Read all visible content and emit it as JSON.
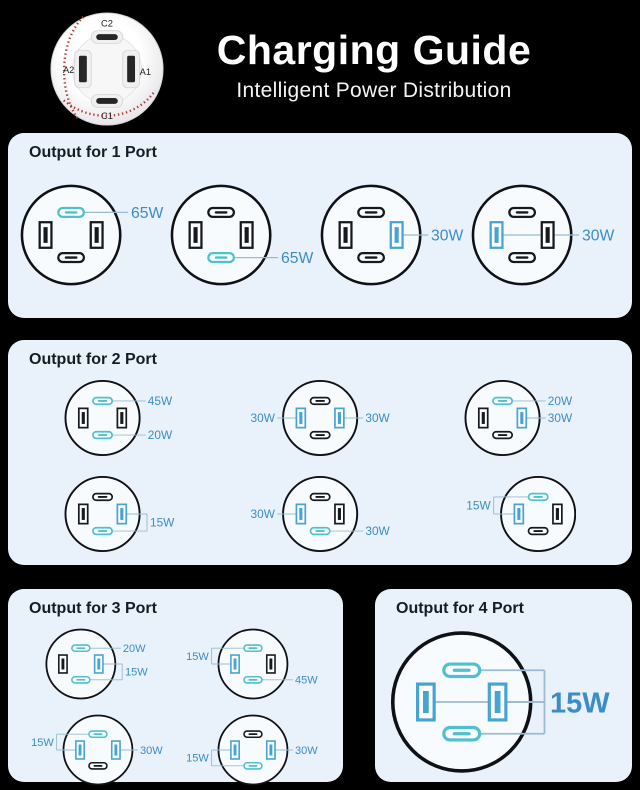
{
  "header": {
    "title": "Charging Guide",
    "subtitle": "Intelligent Power Distribution",
    "device": {
      "description": "baseball-shaped charger top view",
      "ports": [
        {
          "label": "C2",
          "type": "usb-c",
          "position": "top"
        },
        {
          "label": "A2",
          "type": "usb-a",
          "position": "left"
        },
        {
          "label": "A1",
          "type": "usb-a",
          "position": "right"
        },
        {
          "label": "C1",
          "type": "usb-c",
          "position": "bottom"
        }
      ]
    }
  },
  "colors": {
    "page_bg": "#000000",
    "panel_bg": "#e9f1fa",
    "socket_fill": "#f8fbfe",
    "outline": "#0f1116",
    "port_off": "#16191d",
    "port_c_active": "#4fc0cd",
    "port_a_active": "#46a3d2",
    "line": "#9cbbd1",
    "label": "#3b8dc7",
    "title_text": "#141d26",
    "stitch_red": "#b53a3a"
  },
  "panels": [
    {
      "title": "Output for 1 Port",
      "sockets": [
        {
          "on": [
            "tc"
          ],
          "ann": [
            {
              "ports": [
                "tc"
              ],
              "side": "right",
              "label": "65W"
            }
          ]
        },
        {
          "on": [
            "bc"
          ],
          "ann": [
            {
              "ports": [
                "bc"
              ],
              "side": "right",
              "label": "65W"
            }
          ]
        },
        {
          "on": [
            "ra"
          ],
          "ann": [
            {
              "ports": [
                "ra"
              ],
              "side": "right",
              "label": "30W"
            }
          ]
        },
        {
          "on": [
            "la"
          ],
          "ann": [
            {
              "ports": [
                "la"
              ],
              "side": "right",
              "label": "30W"
            }
          ]
        }
      ]
    },
    {
      "title": "Output for 2 Port",
      "sockets": [
        {
          "on": [
            "tc",
            "bc"
          ],
          "ann": [
            {
              "ports": [
                "tc"
              ],
              "side": "right",
              "label": "45W"
            },
            {
              "ports": [
                "bc"
              ],
              "side": "right",
              "label": "20W"
            }
          ]
        },
        {
          "on": [
            "la",
            "ra"
          ],
          "ann": [
            {
              "ports": [
                "la"
              ],
              "side": "left",
              "label": "30W"
            },
            {
              "ports": [
                "ra"
              ],
              "side": "right",
              "label": "30W"
            }
          ]
        },
        {
          "on": [
            "tc",
            "ra"
          ],
          "ann": [
            {
              "ports": [
                "tc"
              ],
              "side": "right",
              "label": "20W"
            },
            {
              "ports": [
                "ra"
              ],
              "side": "right",
              "label": "30W"
            }
          ]
        },
        {
          "on": [
            "ra",
            "bc"
          ],
          "ann": [
            {
              "ports": [
                "ra",
                "bc"
              ],
              "side": "right",
              "label": "15W"
            }
          ]
        },
        {
          "on": [
            "la",
            "bc"
          ],
          "ann": [
            {
              "ports": [
                "la"
              ],
              "side": "left",
              "label": "30W"
            },
            {
              "ports": [
                "bc"
              ],
              "side": "right",
              "label": "30W"
            }
          ]
        },
        {
          "on": [
            "tc",
            "la"
          ],
          "ann": [
            {
              "ports": [
                "tc",
                "la"
              ],
              "side": "left",
              "label": "15W"
            }
          ]
        }
      ]
    },
    {
      "title": "Output for 3 Port",
      "sockets": [
        {
          "on": [
            "tc",
            "ra",
            "bc"
          ],
          "ann": [
            {
              "ports": [
                "tc"
              ],
              "side": "right",
              "label": "20W"
            },
            {
              "ports": [
                "ra",
                "bc"
              ],
              "side": "right",
              "label": "15W"
            }
          ]
        },
        {
          "on": [
            "tc",
            "la",
            "bc"
          ],
          "ann": [
            {
              "ports": [
                "tc",
                "la"
              ],
              "side": "left",
              "label": "15W"
            },
            {
              "ports": [
                "bc"
              ],
              "side": "right",
              "label": "45W"
            }
          ]
        },
        {
          "on": [
            "tc",
            "la",
            "ra"
          ],
          "ann": [
            {
              "ports": [
                "tc",
                "la"
              ],
              "side": "left",
              "label": "15W"
            },
            {
              "ports": [
                "ra"
              ],
              "side": "right",
              "label": "30W"
            }
          ]
        },
        {
          "on": [
            "la",
            "ra",
            "bc"
          ],
          "ann": [
            {
              "ports": [
                "la",
                "bc"
              ],
              "side": "left",
              "label": "15W"
            },
            {
              "ports": [
                "ra"
              ],
              "side": "right",
              "label": "30W"
            }
          ]
        }
      ]
    },
    {
      "title": "Output for 4 Port",
      "big": true,
      "sockets": [
        {
          "on": [
            "tc",
            "la",
            "ra",
            "bc"
          ],
          "ann": [
            {
              "ports": [
                "tc",
                "la",
                "ra",
                "bc"
              ],
              "side": "right",
              "label": "15W"
            }
          ]
        }
      ]
    }
  ]
}
